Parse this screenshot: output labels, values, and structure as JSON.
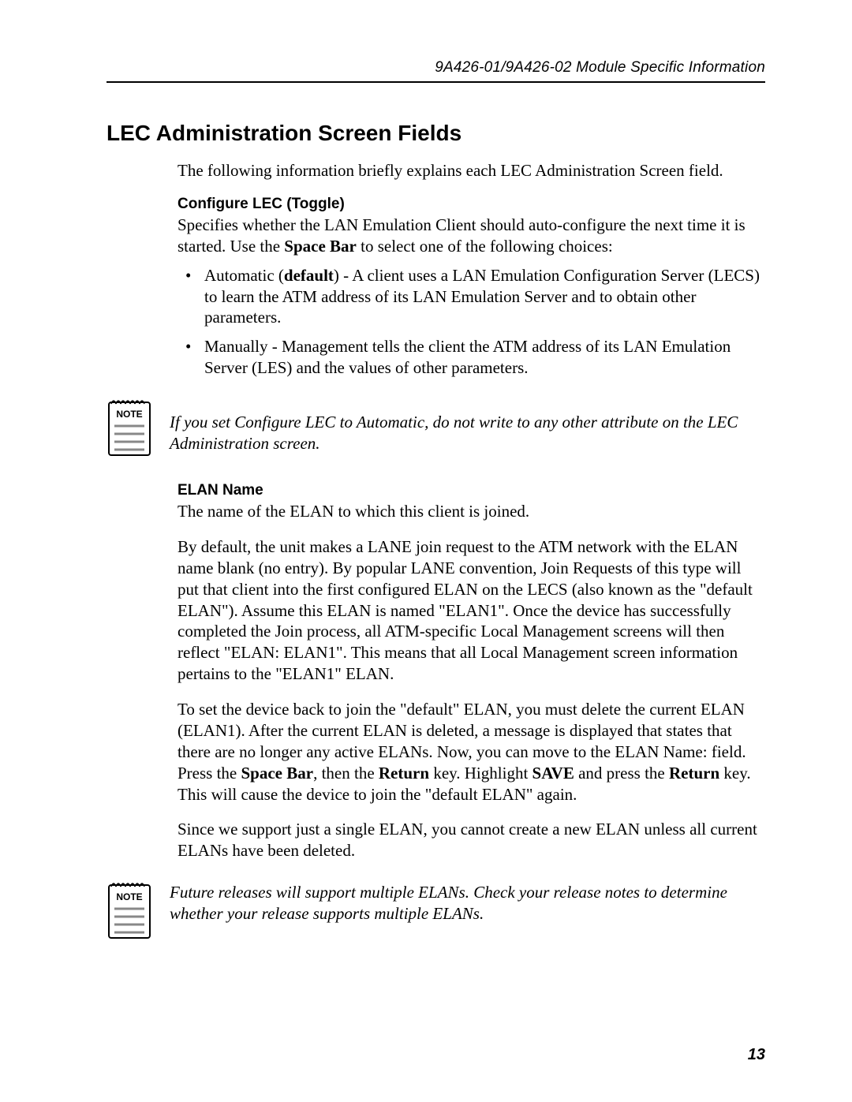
{
  "header": {
    "right": "9A426-01/9A426-02 Module Specific Information"
  },
  "title": "LEC Administration Screen Fields",
  "intro": "The following information briefly explains each LEC Administration Screen field.",
  "configure_lec": {
    "heading": "Configure LEC (Toggle)",
    "para": "Specifies whether the LAN Emulation Client should auto-configure the next time it is started. Use the __B__Space Bar__/B__ to select one of the following choices:",
    "bullets": [
      "Automatic (__B__default__/B__) - A client uses a LAN Emulation Configuration Server (LECS) to learn the ATM address of its LAN Emulation Server and to obtain other parameters.",
      "Manually - Management tells the client the ATM address of its LAN Emulation Server (LES) and the values of other parameters."
    ]
  },
  "note1": {
    "label": "NOTE",
    "text": "If you set Configure LEC to Automatic, do not write to any other attribute on the LEC Administration screen."
  },
  "elan": {
    "heading": "ELAN Name",
    "p1": "The name of the ELAN to which this client is joined.",
    "p2": "By default, the unit makes a LANE join request to the ATM network with the ELAN name blank (no entry). By popular LANE convention, Join Requests of this type will put that client into the first configured ELAN on the LECS (also known as the \"default ELAN\"). Assume this ELAN is named \"ELAN1\". Once the device has successfully completed the Join process, all ATM-specific Local Management screens will then reflect \"ELAN: ELAN1\". This means that all Local Management screen information pertains to the \"ELAN1\" ELAN.",
    "p3": "To set the device back to join the \"default\" ELAN, you must delete the current ELAN (ELAN1). After the current ELAN is deleted, a message is displayed that states that there are no longer any active ELANs. Now, you can move to the ELAN Name: field. Press the __B__Space Bar__/B__, then the __B__Return__/B__ key. Highlight __B__SAVE__/B__ and press the __B__Return__/B__ key. This will cause the device to join the \"default ELAN\" again.",
    "p4": "Since we support just a single ELAN, you cannot create a new ELAN unless all current ELANs have been deleted."
  },
  "note2": {
    "label": "NOTE",
    "text": "Future releases will support multiple ELANs. Check your release notes to determine whether your release supports multiple ELANs."
  },
  "page_number": "13",
  "style": {
    "page_bg": "#ffffff",
    "text_color": "#000000",
    "rule_color": "#000000",
    "body_font_family": "Palatino",
    "body_font_size_pt": 16,
    "heading_font_family": "Arial",
    "h1_size_pt": 21,
    "subhead_size_pt": 14,
    "note_icon": {
      "width": 58,
      "height": 80,
      "border_color": "#000000",
      "spiral_color": "#000000",
      "line_color": "#808080",
      "label_font_family": "Arial",
      "label_font_size_pt": 10,
      "label_weight": "bold"
    }
  }
}
